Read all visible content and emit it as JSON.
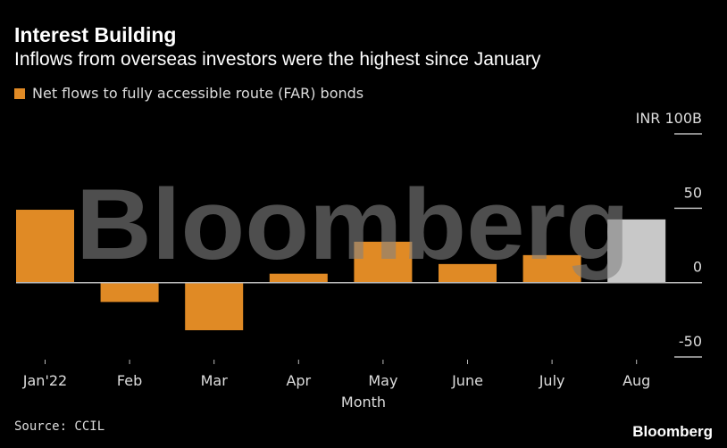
{
  "header": {
    "title": "Interest Building",
    "subtitle": "Inflows from overseas investors were the highest since January"
  },
  "footer": {
    "source": "Source: CCIL",
    "brand": "Bloomberg"
  },
  "watermark": "Bloomberg",
  "colors": {
    "bar": "#e08a25",
    "highlight_bar": "#c8c8c8",
    "background": "#000000",
    "axis": "#bbbbbb"
  },
  "chart_data": {
    "type": "bar",
    "title": "Interest Building",
    "subtitle": "Inflows from overseas investors were the highest since January",
    "xlabel": "Month",
    "ylabel": "",
    "unit_label": "INR 100B",
    "categories": [
      "Jan'22",
      "Feb",
      "Mar",
      "Apr",
      "May",
      "June",
      "July",
      "Aug"
    ],
    "series": [
      {
        "name": "Net flows to fully accessible route (FAR) bonds",
        "values": [
          49,
          -13,
          -32,
          6,
          27.5,
          12.5,
          18.5,
          42.5
        ]
      }
    ],
    "highlighted_category": "Aug",
    "ylim": [
      -60,
      100
    ],
    "yticks": [
      100,
      50,
      0,
      -50
    ],
    "ytick_labels": [
      "INR 100B",
      "50",
      "0",
      "-50"
    ],
    "grid": false,
    "legend_position": "top-left"
  }
}
